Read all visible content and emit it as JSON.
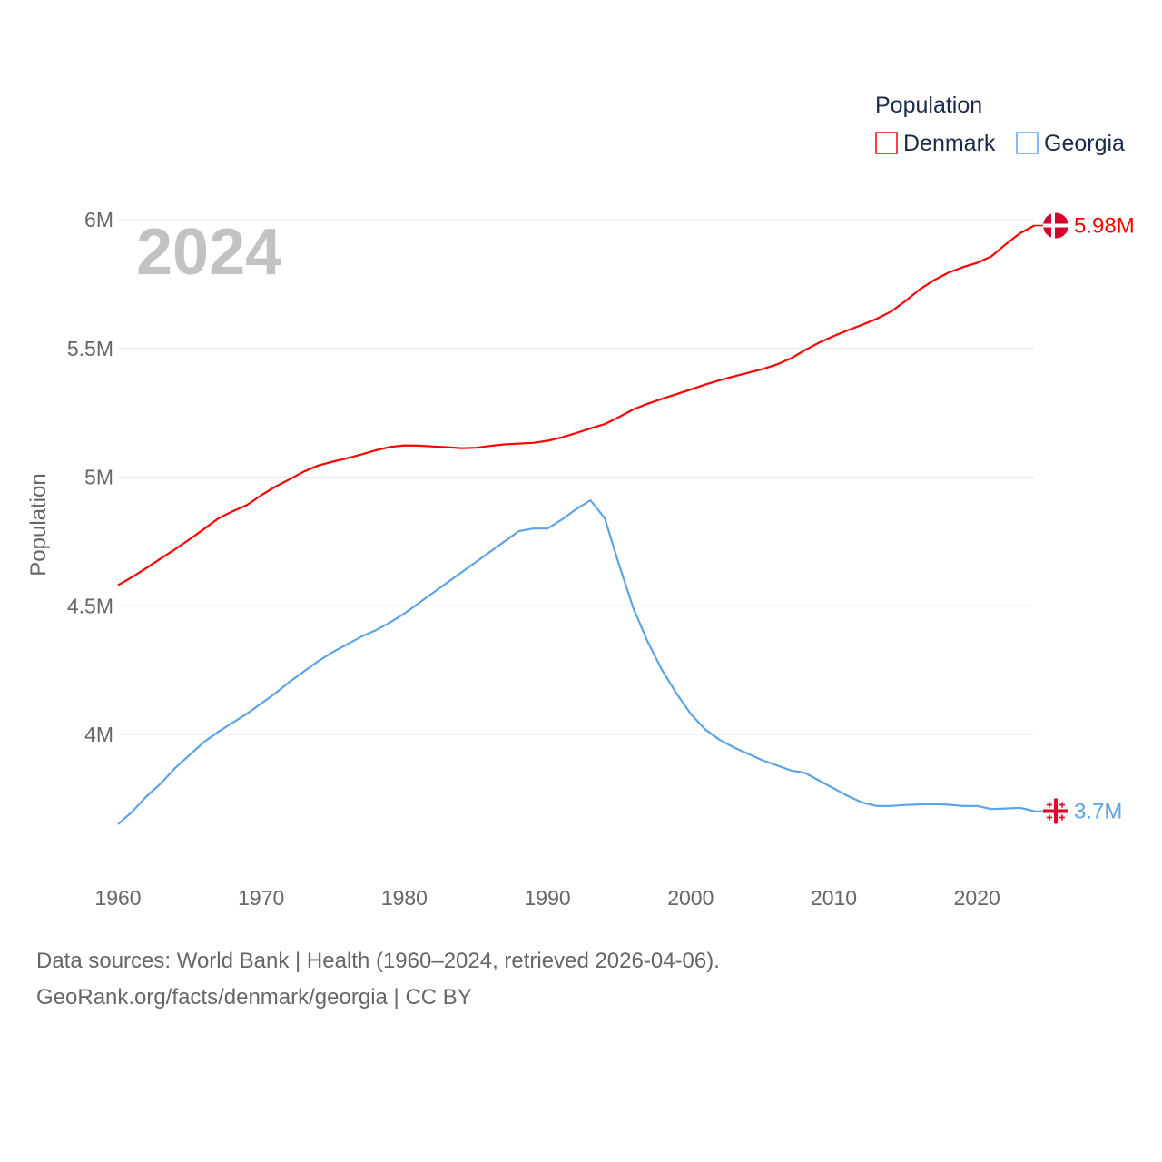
{
  "chart_data": {
    "type": "line",
    "legend_title": "Population",
    "legend_position": "top-right",
    "ylabel": "Population",
    "xlabel": "",
    "year_label": "2024",
    "ylim": [
      3.5,
      6.05
    ],
    "xlim": [
      1960,
      2024
    ],
    "grid": true,
    "y_ticks": [
      {
        "value": 6,
        "label": "6M"
      },
      {
        "value": 5.5,
        "label": "5.5M"
      },
      {
        "value": 5,
        "label": "5M"
      },
      {
        "value": 4.5,
        "label": "4.5M"
      },
      {
        "value": 4,
        "label": "4M"
      }
    ],
    "x_ticks": [
      {
        "value": 1960,
        "label": "1960"
      },
      {
        "value": 1970,
        "label": "1970"
      },
      {
        "value": 1980,
        "label": "1980"
      },
      {
        "value": 1990,
        "label": "1990"
      },
      {
        "value": 2000,
        "label": "2000"
      },
      {
        "value": 2010,
        "label": "2010"
      },
      {
        "value": 2020,
        "label": "2020"
      }
    ],
    "x": [
      1960,
      1961,
      1962,
      1963,
      1964,
      1965,
      1966,
      1967,
      1968,
      1969,
      1970,
      1971,
      1972,
      1973,
      1974,
      1975,
      1976,
      1977,
      1978,
      1979,
      1980,
      1981,
      1982,
      1983,
      1984,
      1985,
      1986,
      1987,
      1988,
      1989,
      1990,
      1991,
      1992,
      1993,
      1994,
      1995,
      1996,
      1997,
      1998,
      1999,
      2000,
      2001,
      2002,
      2003,
      2004,
      2005,
      2006,
      2007,
      2008,
      2009,
      2010,
      2011,
      2012,
      2013,
      2014,
      2015,
      2016,
      2017,
      2018,
      2019,
      2020,
      2021,
      2022,
      2023,
      2024
    ],
    "series": [
      {
        "name": "Denmark",
        "color": "#ff0000",
        "end_label": "5.98M",
        "flag": "denmark-flag",
        "values": [
          4.58,
          4.612,
          4.647,
          4.684,
          4.72,
          4.758,
          4.798,
          4.839,
          4.867,
          4.891,
          4.929,
          4.963,
          4.992,
          5.022,
          5.045,
          5.06,
          5.073,
          5.088,
          5.104,
          5.117,
          5.123,
          5.122,
          5.119,
          5.116,
          5.112,
          5.114,
          5.121,
          5.127,
          5.13,
          5.133,
          5.141,
          5.154,
          5.171,
          5.189,
          5.206,
          5.233,
          5.263,
          5.285,
          5.304,
          5.322,
          5.34,
          5.359,
          5.376,
          5.391,
          5.405,
          5.419,
          5.437,
          5.461,
          5.494,
          5.523,
          5.548,
          5.571,
          5.592,
          5.615,
          5.643,
          5.684,
          5.729,
          5.765,
          5.794,
          5.815,
          5.832,
          5.857,
          5.904,
          5.947,
          5.977
        ]
      },
      {
        "name": "Georgia",
        "color": "#5ba3e8",
        "end_label": "3.7M",
        "flag": "georgia-flag",
        "values": [
          3.651,
          3.7,
          3.76,
          3.81,
          3.87,
          3.92,
          3.97,
          4.01,
          4.045,
          4.08,
          4.12,
          4.16,
          4.205,
          4.245,
          4.285,
          4.32,
          4.35,
          4.38,
          4.405,
          4.435,
          4.47,
          4.51,
          4.55,
          4.59,
          4.63,
          4.67,
          4.71,
          4.75,
          4.79,
          4.8,
          4.8,
          4.835,
          4.875,
          4.91,
          4.84,
          4.66,
          4.49,
          4.36,
          4.25,
          4.16,
          4.08,
          4.02,
          3.98,
          3.95,
          3.925,
          3.9,
          3.88,
          3.86,
          3.85,
          3.82,
          3.79,
          3.76,
          3.735,
          3.722,
          3.722,
          3.726,
          3.728,
          3.729,
          3.727,
          3.722,
          3.722,
          3.71,
          3.712,
          3.715,
          3.702
        ]
      }
    ]
  },
  "footer": {
    "line1": "Data sources: World Bank | Health (1960–2024, retrieved 2026-04-06).",
    "line2": "GeoRank.org/facts/denmark/georgia | CC BY"
  }
}
